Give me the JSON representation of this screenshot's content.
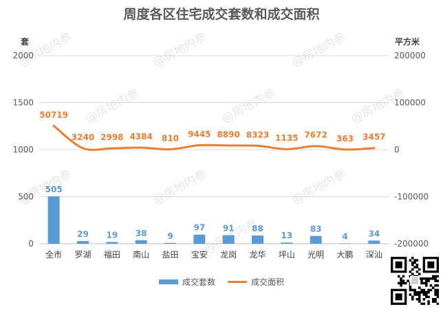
{
  "watermark": "@房地内参",
  "chart_data": {
    "type": "bar",
    "title": "周度各区住宅成交套数和成交面积",
    "categories": [
      "全市",
      "罗湖",
      "福田",
      "南山",
      "盐田",
      "宝安",
      "龙岗",
      "龙华",
      "坪山",
      "光明",
      "大鹏",
      "深汕"
    ],
    "y_left_unit": "套",
    "y_right_unit": "平方米",
    "y_left_ticks": [
      "2000",
      "1500",
      "1000",
      "500",
      "0"
    ],
    "y_right_ticks": [
      "200000",
      "100000",
      "0",
      "-100000",
      "-200000"
    ],
    "ylim_left": [
      0,
      2000
    ],
    "ylim_right": [
      -200000,
      200000
    ],
    "grid": true,
    "legend_position": "bottom",
    "series": [
      {
        "name": "成交套数",
        "type": "bar",
        "axis": "left",
        "color": "#5B9BD5",
        "values": [
          505,
          29,
          19,
          38,
          9,
          97,
          91,
          88,
          13,
          83,
          4,
          34
        ]
      },
      {
        "name": "成交面积",
        "type": "line",
        "axis": "right",
        "color": "#ED7D31",
        "values": [
          50719,
          3240,
          2998,
          4384,
          810,
          9445,
          8890,
          8323,
          1135,
          7672,
          363,
          3457
        ]
      }
    ]
  }
}
